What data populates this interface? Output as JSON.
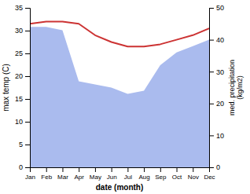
{
  "chart_data": {
    "type": "line",
    "categories": [
      "Jan",
      "Feb",
      "Mar",
      "Apr",
      "May",
      "Jun",
      "Jul",
      "Aug",
      "Sep",
      "Oct",
      "Nov",
      "Dec"
    ],
    "series": [
      {
        "type": "area",
        "color": "#aabbee",
        "axis": "y2",
        "values": [
          44.0,
          44.0,
          43.0,
          27.0,
          26.0,
          25.0,
          23.0,
          24.0,
          32.0,
          36.0,
          38.0,
          40.0
        ]
      },
      {
        "type": "line",
        "color": "#cc3333",
        "values": [
          31.5,
          32.0,
          32.0,
          31.5,
          29.0,
          27.5,
          26.5,
          26.5,
          27.0,
          28.0,
          29.0,
          30.5
        ]
      }
    ],
    "xlabel": "date (month)",
    "ylabel": "max temp (C)",
    "y2label": "med. precipitation\n(kg/m2)",
    "ylim": [
      0,
      35
    ],
    "yticks": [
      0,
      5,
      10,
      15,
      20,
      25,
      30,
      35
    ],
    "y2lim": [
      0,
      50
    ],
    "y2ticks": [
      0,
      10,
      20,
      30,
      40,
      50
    ]
  }
}
